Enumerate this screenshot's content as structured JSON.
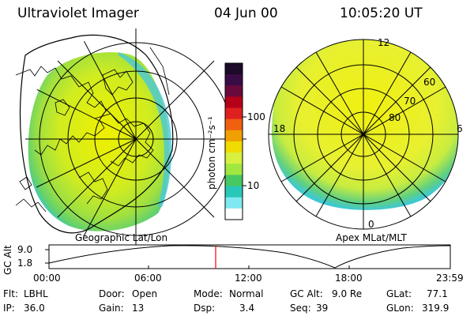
{
  "header": {
    "title": "Ultraviolet Imager",
    "date": "04 Jun 00",
    "time": "10:05:20 UT"
  },
  "colorbar": {
    "label": "photon cm⁻²s⁻¹",
    "ticks": [
      "100",
      "10"
    ],
    "colors": [
      "#1b0a28",
      "#3a0c46",
      "#6a0a3c",
      "#b50018",
      "#e02020",
      "#f06010",
      "#f0a000",
      "#f0dc00",
      "#d8f040",
      "#a0e840",
      "#48c860",
      "#28c8b8",
      "#80e8f0",
      "#ffffff"
    ]
  },
  "left_map": {
    "label": "Geographic Lat/Lon"
  },
  "right_map": {
    "label": "Apex MLat/MLT",
    "hour_labels": {
      "top": "12",
      "left": "18",
      "right": "6",
      "bottom": "0"
    },
    "lat_labels": [
      "60",
      "70",
      "80"
    ]
  },
  "altitude_plot": {
    "ylabel": "GC Alt",
    "yticks": [
      "9.0",
      "1.8"
    ],
    "xticks": [
      "00:00",
      "06:00",
      "12:00",
      "18:00",
      "23:59"
    ],
    "marker_color": "#ff0000"
  },
  "info": {
    "filter_label": "Flt:",
    "filter_value": "LBHL",
    "ip_label": "IP:",
    "ip_value": "36.0",
    "door_label": "Door:",
    "door_value": "Open",
    "gain_label": "Gain:",
    "gain_value": "13",
    "mode_label": "Mode:",
    "mode_value": "Normal",
    "dsp_label": "Dsp:",
    "dsp_value": "3.4",
    "gcalt_label": "GC Alt:",
    "gcalt_value": "9.0 Re",
    "seq_label": "Seq:",
    "seq_value": "39",
    "glat_label": "GLat:",
    "glat_value": "77.1",
    "glon_label": "GLon:",
    "glon_value": "319.9"
  }
}
